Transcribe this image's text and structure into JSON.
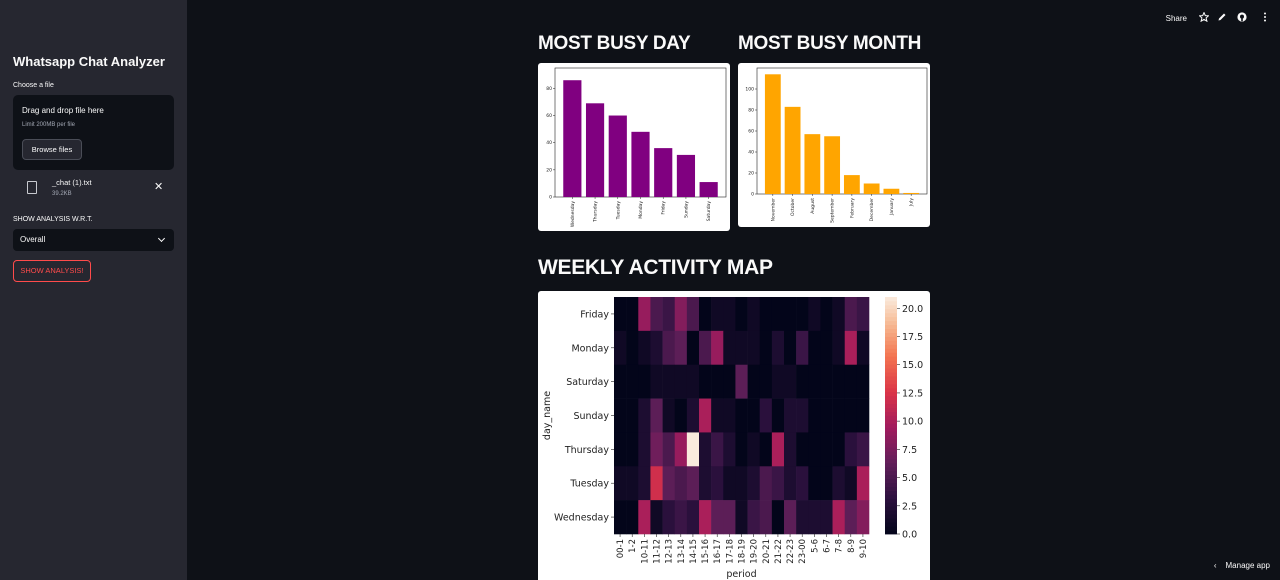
{
  "sidebar": {
    "title": "Whatsapp Chat Analyzer",
    "choose_label": "Choose a file",
    "dropzone_text": "Drag and drop file here",
    "dropzone_limit": "Limit 200MB per file",
    "browse_label": "Browse files",
    "file_name": "_chat (1).txt",
    "file_size": "39.2KB",
    "wrt_label": "SHOW ANALYSIS W.R.T.",
    "select_value": "Overall",
    "show_button": "SHOW ANALYSIS!"
  },
  "topbar": {
    "share_label": "Share"
  },
  "footer": {
    "manage_label": "Manage app"
  },
  "sections": {
    "busy_day_title": "MOST BUSY DAY",
    "busy_month_title": "MOST BUSY MONTH",
    "weekly_title": "WEEKLY ACTIVITY MAP"
  },
  "colors": {
    "day_bar": "#800080",
    "month_bar": "#ffa500",
    "accent": "#ff4b4b"
  },
  "chart_data": [
    {
      "type": "bar",
      "categories": [
        "Wednesday",
        "Thursday",
        "Tuesday",
        "Monday",
        "Friday",
        "Sunday",
        "Saturday"
      ],
      "values": [
        86,
        69,
        60,
        48,
        36,
        31,
        11
      ],
      "ylim": [
        0,
        95
      ],
      "yticks": [
        0,
        20,
        40,
        60,
        80
      ],
      "grid": false
    },
    {
      "type": "bar",
      "categories": [
        "November",
        "October",
        "August",
        "September",
        "February",
        "December",
        "January",
        "July"
      ],
      "values": [
        114,
        83,
        57,
        55,
        18,
        10,
        5,
        1
      ],
      "ylim": [
        0,
        120
      ],
      "yticks": [
        0,
        20,
        40,
        60,
        80,
        100
      ],
      "grid": false
    },
    {
      "type": "heatmap",
      "xlabel": "period",
      "ylabel": "day_name",
      "rows": [
        "Friday",
        "Monday",
        "Saturday",
        "Sunday",
        "Thursday",
        "Tuesday",
        "Wednesday"
      ],
      "columns": [
        "00-1",
        "1-2",
        "10-11",
        "11-12",
        "12-13",
        "13-14",
        "14-15",
        "15-16",
        "16-17",
        "17-18",
        "18-19",
        "19-20",
        "20-21",
        "21-22",
        "22-23",
        "23-00",
        "5-6",
        "6-7",
        "7-8",
        "8-9",
        "9-10"
      ],
      "values": [
        [
          0,
          0,
          9,
          5,
          4,
          8,
          5,
          0,
          1,
          1,
          0,
          1,
          0,
          0,
          0,
          0,
          1,
          0,
          1,
          5,
          4
        ],
        [
          1,
          0,
          1,
          2,
          5,
          6,
          0,
          5,
          9,
          1,
          1,
          1,
          0,
          2,
          0,
          4,
          0,
          0,
          1,
          10,
          1
        ],
        [
          0,
          0,
          0,
          1,
          1,
          1,
          1,
          0,
          0,
          0,
          6,
          0,
          0,
          1,
          1,
          0,
          0,
          0,
          0,
          0,
          0
        ],
        [
          0,
          0,
          2,
          6,
          1,
          0,
          2,
          10,
          1,
          1,
          0,
          0,
          3,
          0,
          2,
          2,
          0,
          0,
          0,
          0,
          0
        ],
        [
          0,
          0,
          2,
          7,
          5,
          9,
          21,
          2,
          4,
          2,
          0,
          1,
          0,
          10,
          2,
          0,
          0,
          0,
          0,
          3,
          4
        ],
        [
          1,
          1,
          2,
          12,
          6,
          5,
          6,
          2,
          3,
          1,
          1,
          2,
          5,
          4,
          2,
          3,
          0,
          0,
          2,
          1,
          10
        ],
        [
          0,
          0,
          10,
          1,
          3,
          4,
          3,
          10,
          6,
          6,
          1,
          4,
          5,
          0,
          6,
          2,
          2,
          2,
          10,
          6,
          8
        ]
      ],
      "colorbar": {
        "min": 0,
        "max": 21,
        "ticks": [
          "0.0",
          "2.5",
          "5.0",
          "7.5",
          "10.0",
          "12.5",
          "15.0",
          "17.5",
          "20.0"
        ]
      }
    }
  ]
}
